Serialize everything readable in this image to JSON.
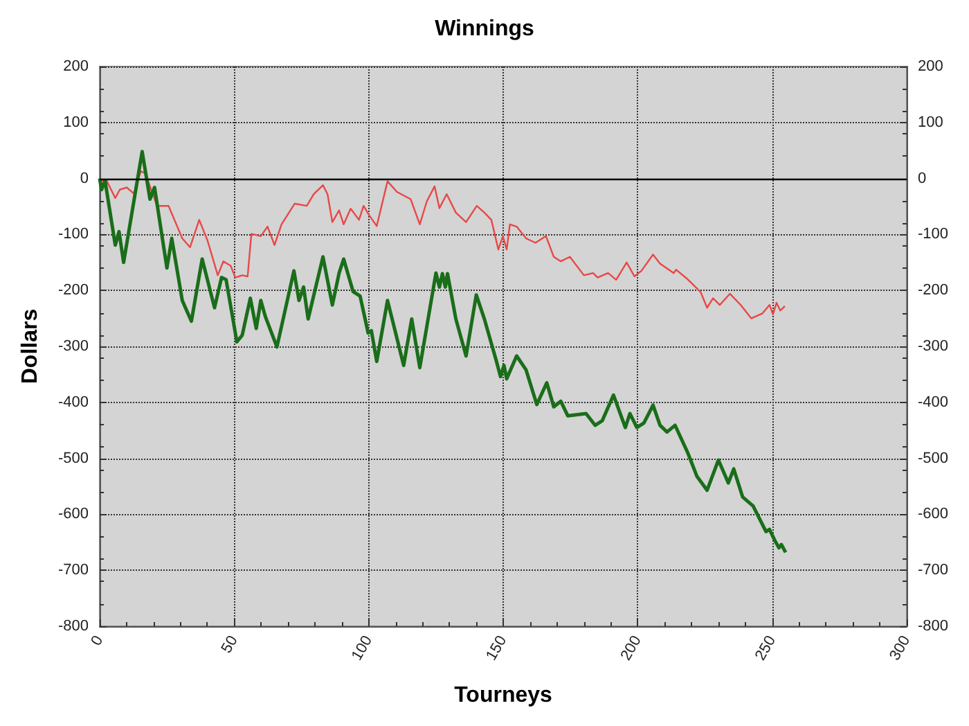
{
  "chart_data": {
    "type": "line",
    "title": "Winnings",
    "xlabel": "Tourneys",
    "ylabel": "Dollars",
    "xlim": [
      0,
      300
    ],
    "xticks": [
      0,
      50,
      100,
      150,
      200,
      250,
      300
    ],
    "ylim": [
      -800,
      200
    ],
    "yticks": [
      -800,
      -700,
      -600,
      -500,
      -400,
      -300,
      -200,
      -100,
      0,
      100,
      200
    ],
    "y2lim": [
      -800,
      200
    ],
    "y2ticks": [
      -800,
      -700,
      -600,
      -500,
      -400,
      -300,
      -200,
      -100,
      0,
      100,
      200
    ],
    "grid": true,
    "marker": "none",
    "line_style": "solid",
    "ref_lines": [
      {
        "axis": "y",
        "value": 0,
        "color": "#000000"
      }
    ],
    "series": [
      {
        "color": "#e84848",
        "x": [
          0.7,
          2.4,
          5.8,
          7.5,
          10,
          12.7,
          15.3,
          17,
          21.3,
          25.6,
          30.7,
          33.6,
          37,
          40.1,
          43.9,
          46,
          48.7,
          50.4,
          53,
          55,
          56.4,
          59.9,
          62.4,
          65,
          67.6,
          72.5,
          77,
          79.6,
          83,
          84.7,
          86.5,
          89,
          90.7,
          93.3,
          96.4,
          98.1,
          100.2,
          103,
          107,
          110.5,
          115.6,
          119,
          121.6,
          124.5,
          126.3,
          129,
          132.4,
          136.2,
          140.2,
          143,
          145.6,
          148.2,
          149.9,
          151.3,
          152.5,
          155,
          158.5,
          162,
          165.9,
          168.8,
          171.4,
          174.8,
          180,
          183.4,
          185.1,
          189,
          192,
          195.9,
          198.8,
          201.4,
          205.7,
          208.3,
          213.4,
          214.3,
          218.3,
          223.4,
          225.8,
          228,
          230.5,
          234.3,
          238.3,
          242.2,
          246.4,
          249,
          250.3,
          251.6,
          253,
          254.7
        ],
        "values": [
          -4,
          -2,
          -35,
          -20,
          -16,
          -27,
          13,
          9,
          -49,
          -49,
          -107,
          -123,
          -74,
          -111,
          -173,
          -148,
          -156,
          -177,
          -173,
          -175,
          -99,
          -103,
          -86,
          -119,
          -82,
          -45,
          -49,
          -28,
          -12,
          -28,
          -78,
          -57,
          -82,
          -54,
          -74,
          -49,
          -66,
          -85,
          -5,
          -24,
          -37,
          -82,
          -41,
          -14,
          -53,
          -28,
          -61,
          -78,
          -49,
          -61,
          -74,
          -127,
          -103,
          -127,
          -82,
          -86,
          -107,
          -115,
          -103,
          -140,
          -148,
          -140,
          -173,
          -169,
          -177,
          -169,
          -181,
          -150,
          -175,
          -165,
          -136,
          -152,
          -169,
          -163,
          -179,
          -203,
          -231,
          -214,
          -226,
          -206,
          -226,
          -250,
          -241,
          -226,
          -243,
          -222,
          -236,
          -228
        ]
      },
      {
        "color": "#1a6e1a",
        "x": [
          0,
          0.7,
          2,
          5.8,
          7.2,
          8.9,
          15.8,
          18.7,
          20.4,
          25,
          26.8,
          30.7,
          34.1,
          38.1,
          42.7,
          45.3,
          47,
          51,
          53,
          56,
          58.2,
          59.9,
          61.6,
          65.9,
          72.2,
          74.1,
          75.8,
          77.5,
          83,
          86.5,
          89,
          90.7,
          94.2,
          96.8,
          99.8,
          101,
          103,
          107,
          109.6,
          113,
          116,
          119,
          125,
          126.3,
          127.4,
          128.5,
          129.3,
          132.4,
          136.2,
          140,
          143,
          147.4,
          149,
          150.3,
          151.3,
          155,
          158.5,
          162.5,
          166.2,
          168.8,
          171.4,
          174,
          180.8,
          184.2,
          186.8,
          191,
          195.4,
          197.1,
          199.7,
          202.3,
          205.7,
          208.3,
          210.9,
          213.9,
          218.6,
          222,
          225.8,
          230,
          233.7,
          235.7,
          239,
          242.9,
          247.7,
          249,
          251,
          252.5,
          253.4,
          255
        ],
        "values": [
          0,
          -20,
          -4,
          -119,
          -95,
          -150,
          48,
          -37,
          -16,
          -160,
          -107,
          -218,
          -255,
          -144,
          -231,
          -177,
          -181,
          -292,
          -280,
          -214,
          -268,
          -218,
          -247,
          -301,
          -165,
          -218,
          -194,
          -251,
          -140,
          -226,
          -169,
          -144,
          -202,
          -210,
          -276,
          -272,
          -327,
          -218,
          -268,
          -334,
          -251,
          -338,
          -169,
          -194,
          -170,
          -194,
          -170,
          -251,
          -317,
          -208,
          -251,
          -325,
          -354,
          -334,
          -358,
          -317,
          -342,
          -404,
          -365,
          -408,
          -398,
          -424,
          -420,
          -441,
          -433,
          -387,
          -445,
          -420,
          -445,
          -437,
          -405,
          -441,
          -453,
          -441,
          -490,
          -532,
          -557,
          -503,
          -544,
          -519,
          -569,
          -585,
          -631,
          -627,
          -647,
          -660,
          -654,
          -668
        ]
      }
    ]
  }
}
